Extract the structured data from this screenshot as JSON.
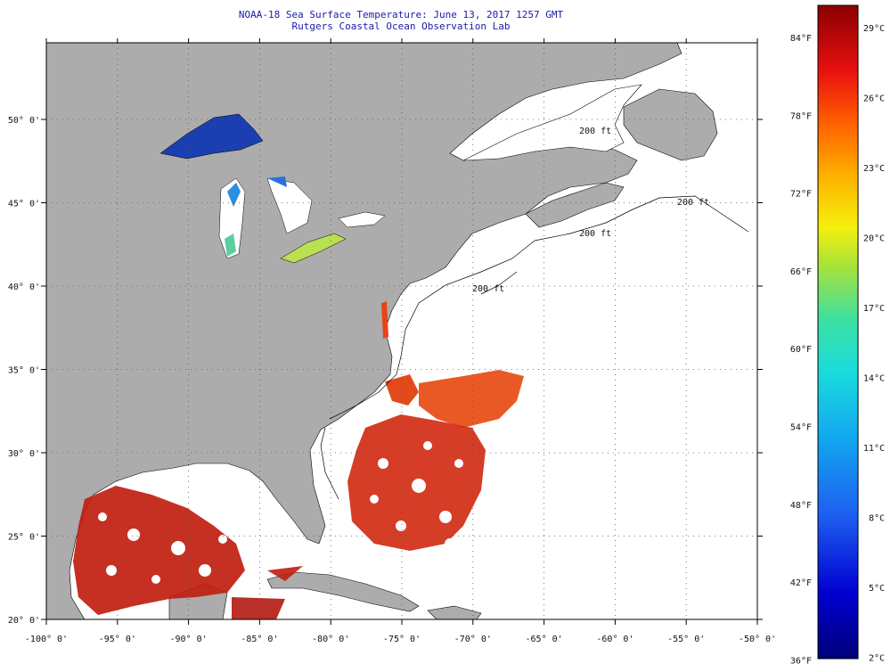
{
  "title_line1": "NOAA-18 Sea Surface Temperature:  June 13, 2017 1257 GMT",
  "title_line2": "Rutgers Coastal Ocean Observation Lab",
  "lon_labels": [
    "-100° 0'",
    "-95° 0'",
    "-90° 0'",
    "-85° 0'",
    "-80° 0'",
    "-75° 0'",
    "-70° 0'",
    "-65° 0'",
    "-60° 0'",
    "-55° 0'",
    "-50° 0'"
  ],
  "lat_labels": [
    "20° 0'",
    "25° 0'",
    "30° 0'",
    "35° 0'",
    "40° 0'",
    "45° 0'",
    "50° 0'"
  ],
  "colorbar": {
    "fahrenheit": [
      "84°F",
      "78°F",
      "72°F",
      "66°F",
      "60°F",
      "54°F",
      "48°F",
      "42°F",
      "36°F"
    ],
    "celsius": [
      "29°C",
      "26°C",
      "23°C",
      "20°C",
      "17°C",
      "14°C",
      "11°C",
      "8°C",
      "5°C",
      "2°C"
    ]
  },
  "isobath_labels": [
    "200 ft",
    "200 ft",
    "200 ft",
    "200 ft"
  ],
  "colors": {
    "land": "#acacac",
    "ocean_nodata": "#ffffff",
    "title": "#1a1aa8",
    "warm": "#cc1a0e",
    "hot": "#e8431a",
    "cold": "#1b3fb0"
  }
}
